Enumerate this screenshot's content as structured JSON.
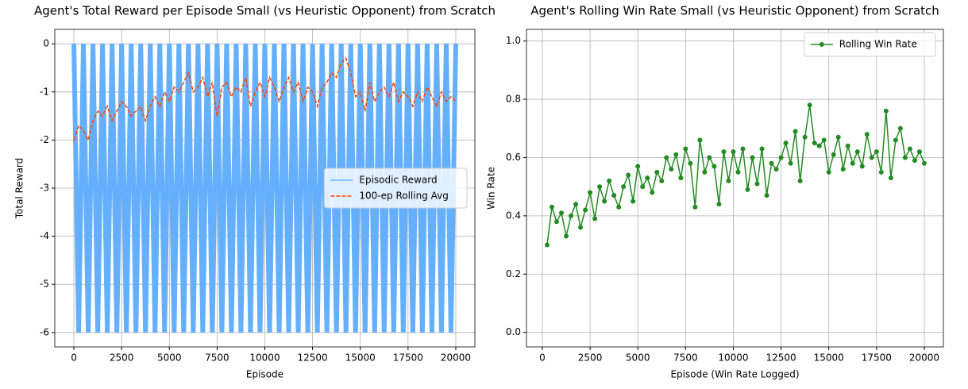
{
  "chart_data": [
    {
      "type": "line",
      "title": "Agent's Total Reward per Episode Small (vs Heuristic Opponent) from Scratch",
      "xlabel": "Episode",
      "ylabel": "Total Reward",
      "x": [
        0,
        250,
        500,
        750,
        1000,
        1250,
        1500,
        1750,
        2000,
        2250,
        2500,
        2750,
        3000,
        3250,
        3500,
        3750,
        4000,
        4250,
        4500,
        4750,
        5000,
        5250,
        5500,
        5750,
        6000,
        6250,
        6500,
        6750,
        7000,
        7250,
        7500,
        7750,
        8000,
        8250,
        8500,
        8750,
        9000,
        9250,
        9500,
        9750,
        10000,
        10250,
        10500,
        10750,
        11000,
        11250,
        11500,
        11750,
        12000,
        12250,
        12500,
        12750,
        13000,
        13250,
        13500,
        13750,
        14000,
        14250,
        14500,
        14750,
        15000,
        15250,
        15500,
        15750,
        16000,
        16250,
        16500,
        16750,
        17000,
        17250,
        17500,
        17750,
        18000,
        18250,
        18500,
        18750,
        19000,
        19250,
        19500,
        19750,
        20000
      ],
      "series": [
        {
          "name": "Episodic Reward",
          "color": "#64b0ff",
          "style": "band",
          "values": [
            0,
            -6,
            0,
            -6,
            0,
            -6,
            0,
            -6,
            0,
            -6,
            0,
            -6,
            0,
            -6,
            0,
            -6,
            0,
            -6,
            0,
            -6,
            0,
            -6,
            0,
            -6,
            0,
            -6,
            0,
            -6,
            0,
            -6,
            0,
            -6,
            0,
            -6,
            0,
            -6,
            0,
            -6,
            0,
            -6,
            0,
            -6,
            0,
            -6,
            0,
            -6,
            0,
            -6,
            0,
            -6,
            0,
            -6,
            0,
            -6,
            0,
            -6,
            0,
            -6,
            0,
            -6,
            0,
            -6,
            0,
            -6,
            0,
            -6,
            0,
            -6,
            0,
            -6,
            0,
            -6,
            0,
            -6,
            0,
            -6,
            0,
            -6,
            0,
            -6,
            0
          ]
        },
        {
          "name": "100-ep Rolling Avg",
          "color": "#ff4500",
          "style": "dashed",
          "values": [
            -2.0,
            -1.7,
            -1.8,
            -2.0,
            -1.6,
            -1.4,
            -1.5,
            -1.3,
            -1.6,
            -1.4,
            -1.2,
            -1.3,
            -1.5,
            -1.4,
            -1.3,
            -1.6,
            -1.3,
            -1.1,
            -1.3,
            -1.0,
            -1.2,
            -0.9,
            -1.0,
            -0.8,
            -0.6,
            -1.0,
            -0.9,
            -0.7,
            -1.1,
            -0.8,
            -1.5,
            -0.9,
            -0.8,
            -1.1,
            -0.9,
            -1.0,
            -0.7,
            -1.3,
            -1.0,
            -0.8,
            -1.1,
            -0.7,
            -0.9,
            -1.2,
            -0.9,
            -0.7,
            -1.0,
            -0.8,
            -1.2,
            -0.9,
            -1.0,
            -1.3,
            -0.9,
            -0.8,
            -0.6,
            -0.7,
            -0.4,
            -0.3,
            -0.6,
            -1.1,
            -1.0,
            -1.4,
            -0.8,
            -1.2,
            -1.0,
            -0.9,
            -1.1,
            -0.8,
            -1.2,
            -1.0,
            -1.1,
            -1.3,
            -1.0,
            -1.2,
            -0.9,
            -1.1,
            -1.3,
            -1.0,
            -1.2,
            -1.1,
            -1.2
          ]
        }
      ],
      "xlim": [
        -1000,
        21000
      ],
      "ylim": [
        -6.3,
        0.3
      ],
      "xticks": [
        0,
        2500,
        5000,
        7500,
        10000,
        12500,
        15000,
        17500,
        20000
      ],
      "yticks": [
        -6,
        -5,
        -4,
        -3,
        -2,
        -1,
        0
      ],
      "grid": true,
      "legend": "center right"
    },
    {
      "type": "line",
      "title": "Agent's Rolling Win Rate Small (vs Heuristic Opponent) from Scratch",
      "xlabel": "Episode (Win Rate Logged)",
      "ylabel": "Win Rate",
      "x": [
        250,
        500,
        750,
        1000,
        1250,
        1500,
        1750,
        2000,
        2250,
        2500,
        2750,
        3000,
        3250,
        3500,
        3750,
        4000,
        4250,
        4500,
        4750,
        5000,
        5250,
        5500,
        5750,
        6000,
        6250,
        6500,
        6750,
        7000,
        7250,
        7500,
        7750,
        8000,
        8250,
        8500,
        8750,
        9000,
        9250,
        9500,
        9750,
        10000,
        10250,
        10500,
        10750,
        11000,
        11250,
        11500,
        11750,
        12000,
        12250,
        12500,
        12750,
        13000,
        13250,
        13500,
        13750,
        14000,
        14250,
        14500,
        14750,
        15000,
        15250,
        15500,
        15750,
        16000,
        16250,
        16500,
        16750,
        17000,
        17250,
        17500,
        17750,
        18000,
        18250,
        18500,
        18750,
        19000,
        19250,
        19500,
        19750,
        20000
      ],
      "series": [
        {
          "name": "Rolling Win Rate",
          "color": "#228b22",
          "style": "marker",
          "values": [
            0.3,
            0.43,
            0.38,
            0.41,
            0.33,
            0.4,
            0.44,
            0.36,
            0.42,
            0.48,
            0.39,
            0.5,
            0.45,
            0.52,
            0.47,
            0.43,
            0.5,
            0.54,
            0.45,
            0.57,
            0.5,
            0.53,
            0.48,
            0.55,
            0.52,
            0.6,
            0.56,
            0.61,
            0.53,
            0.63,
            0.58,
            0.43,
            0.66,
            0.55,
            0.6,
            0.57,
            0.44,
            0.62,
            0.52,
            0.62,
            0.55,
            0.63,
            0.49,
            0.6,
            0.51,
            0.63,
            0.47,
            0.58,
            0.56,
            0.6,
            0.65,
            0.58,
            0.69,
            0.52,
            0.67,
            0.78,
            0.65,
            0.64,
            0.66,
            0.55,
            0.61,
            0.67,
            0.56,
            0.64,
            0.58,
            0.62,
            0.57,
            0.68,
            0.6,
            0.62,
            0.55,
            0.76,
            0.53,
            0.66,
            0.7,
            0.6,
            0.63,
            0.59,
            0.62,
            0.58
          ]
        }
      ],
      "xlim": [
        -830,
        21000
      ],
      "ylim": [
        -0.05,
        1.04
      ],
      "xticks": [
        0,
        2500,
        5000,
        7500,
        10000,
        12500,
        15000,
        17500,
        20000
      ],
      "yticks": [
        {
          "value": 0,
          "label": "0.0"
        },
        {
          "value": 0.2,
          "label": "0.2"
        },
        {
          "value": 0.4,
          "label": "0.4"
        },
        {
          "value": 0.6,
          "label": "0.6"
        },
        {
          "value": 0.8,
          "label": "0.8"
        },
        {
          "value": 1,
          "label": "1.0"
        }
      ],
      "grid": true,
      "legend": "upper right"
    }
  ]
}
